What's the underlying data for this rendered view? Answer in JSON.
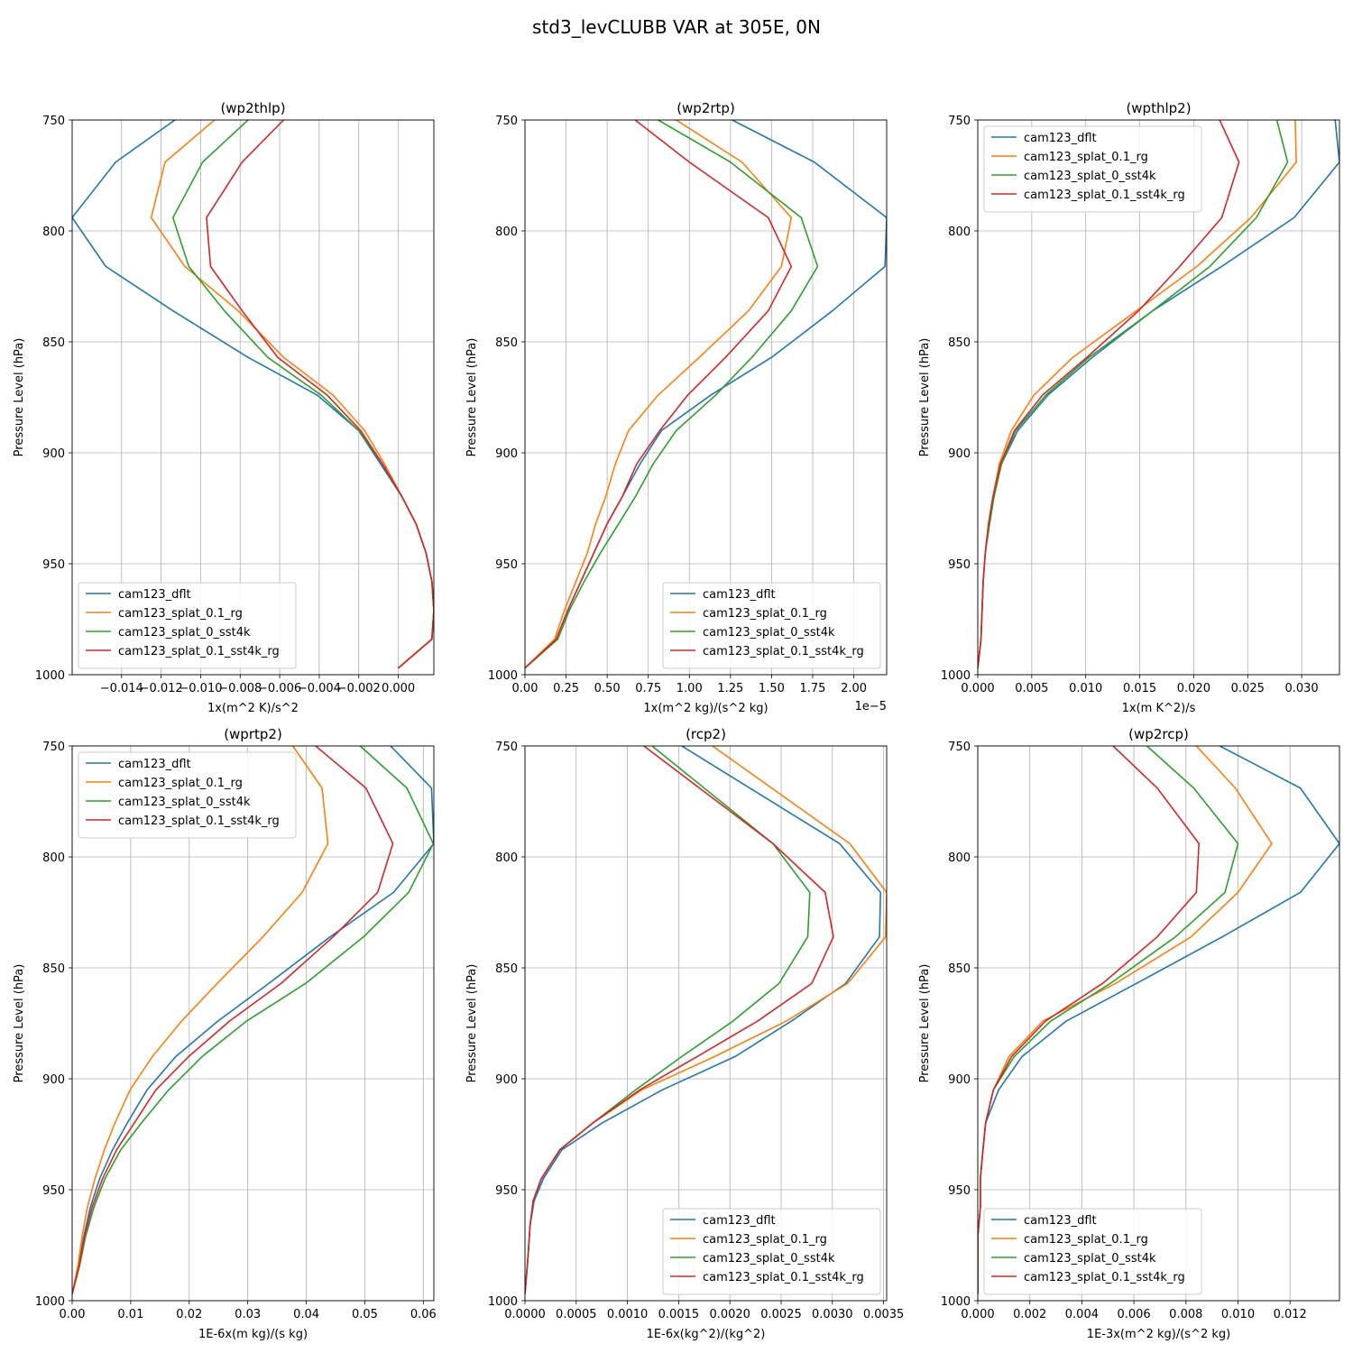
{
  "title": "std3_levCLUBB VAR at 305E, 0N",
  "colors": {
    "series": [
      "#1f77b4",
      "#ff7f0e",
      "#2ca02c",
      "#d62728"
    ],
    "grid": "#b0b0b0",
    "axis": "#000000"
  },
  "chart_data": [
    {
      "type": "line",
      "title": "(wp2thlp)",
      "xlabel": "1x(m^2 K)/s^2",
      "ylabel": "Pressure Level (hPa)",
      "offset_label": "",
      "xlim": [
        -0.0165,
        0.0018
      ],
      "ylim": [
        1000,
        750
      ],
      "xticks": [
        -0.014,
        -0.012,
        -0.01,
        -0.008,
        -0.006,
        -0.004,
        -0.002,
        0.0
      ],
      "xticklabels": [
        "−0.014",
        "−0.012",
        "−0.010",
        "−0.008",
        "−0.006",
        "−0.004",
        "−0.002",
        "0.000"
      ],
      "yticks": [
        750,
        800,
        850,
        900,
        950,
        1000
      ],
      "legend": "lower-left",
      "levels": [
        750,
        769,
        794,
        816,
        836,
        857,
        874,
        890,
        905,
        920,
        932,
        945,
        958,
        971,
        984,
        997
      ],
      "series": [
        {
          "name": "cam123_dflt",
          "values": [
            -0.0113,
            -0.0143,
            -0.0165,
            -0.0148,
            -0.0114,
            -0.0076,
            -0.0041,
            -0.002,
            -0.0009,
            0.0002,
            0.0009,
            0.0014,
            0.0017,
            0.0018,
            0.0017,
            0.0
          ]
        },
        {
          "name": "cam123_splat_0.1_rg",
          "values": [
            -0.0093,
            -0.0118,
            -0.0125,
            -0.0108,
            -0.0081,
            -0.0058,
            -0.0033,
            -0.0017,
            -0.0007,
            0.0002,
            0.0009,
            0.0014,
            0.0017,
            0.0018,
            0.0017,
            0.0
          ]
        },
        {
          "name": "cam123_splat_0_sst4k",
          "values": [
            -0.0076,
            -0.0099,
            -0.0114,
            -0.0106,
            -0.0088,
            -0.0066,
            -0.0039,
            -0.002,
            -0.0008,
            0.0002,
            0.0009,
            0.0014,
            0.0017,
            0.0018,
            0.0017,
            0.0
          ]
        },
        {
          "name": "cam123_splat_0.1_sst4k_rg",
          "values": [
            -0.0058,
            -0.0079,
            -0.0097,
            -0.0095,
            -0.0079,
            -0.0061,
            -0.0036,
            -0.0019,
            -0.0008,
            0.0002,
            0.0009,
            0.0014,
            0.0017,
            0.0018,
            0.0017,
            0.0
          ]
        }
      ]
    },
    {
      "type": "line",
      "title": "(wp2rtp)",
      "xlabel": "1x(m^2 kg)/(s^2 kg)",
      "ylabel": "Pressure Level (hPa)",
      "offset_label": "1e−5",
      "xlim": [
        0,
        2.2
      ],
      "ylim": [
        1000,
        750
      ],
      "xticks": [
        0.0,
        0.25,
        0.5,
        0.75,
        1.0,
        1.25,
        1.5,
        1.75,
        2.0
      ],
      "xticklabels": [
        "0.00",
        "0.25",
        "0.50",
        "0.75",
        "1.00",
        "1.25",
        "1.50",
        "1.75",
        "2.00"
      ],
      "yticks": [
        750,
        800,
        850,
        900,
        950,
        1000
      ],
      "legend": "lower-right",
      "levels": [
        750,
        769,
        794,
        816,
        836,
        857,
        874,
        890,
        905,
        920,
        932,
        945,
        958,
        971,
        984,
        997
      ],
      "series": [
        {
          "name": "cam123_dflt",
          "values": [
            1.26,
            1.76,
            2.2,
            2.19,
            1.87,
            1.5,
            1.13,
            0.83,
            0.7,
            0.59,
            0.5,
            0.42,
            0.34,
            0.26,
            0.19,
            0.0
          ]
        },
        {
          "name": "cam123_splat_0.1_rg",
          "values": [
            0.92,
            1.32,
            1.62,
            1.56,
            1.36,
            1.06,
            0.81,
            0.63,
            0.55,
            0.49,
            0.43,
            0.38,
            0.31,
            0.24,
            0.18,
            0.0
          ]
        },
        {
          "name": "cam123_splat_0_sst4k",
          "values": [
            0.81,
            1.25,
            1.68,
            1.78,
            1.62,
            1.38,
            1.16,
            0.92,
            0.78,
            0.67,
            0.57,
            0.46,
            0.36,
            0.27,
            0.2,
            0.0
          ]
        },
        {
          "name": "cam123_splat_0.1_sst4k_rg",
          "values": [
            0.67,
            1.0,
            1.48,
            1.62,
            1.48,
            1.22,
            0.99,
            0.82,
            0.68,
            0.59,
            0.5,
            0.42,
            0.34,
            0.26,
            0.19,
            0.0
          ]
        }
      ]
    },
    {
      "type": "line",
      "title": "(wpthlp2)",
      "xlabel": "1x(m K^2)/s",
      "ylabel": "Pressure Level (hPa)",
      "offset_label": "",
      "xlim": [
        0,
        0.0335
      ],
      "ylim": [
        1000,
        750
      ],
      "xticks": [
        0.0,
        0.005,
        0.01,
        0.015,
        0.02,
        0.025,
        0.03
      ],
      "xticklabels": [
        "0.000",
        "0.005",
        "0.010",
        "0.015",
        "0.020",
        "0.025",
        "0.030"
      ],
      "yticks": [
        750,
        800,
        850,
        900,
        950,
        1000
      ],
      "legend": "upper-left",
      "levels": [
        750,
        769,
        794,
        816,
        836,
        857,
        874,
        890,
        905,
        920,
        932,
        945,
        958,
        971,
        984,
        997
      ],
      "series": [
        {
          "name": "cam123_dflt",
          "values": [
            0.0331,
            0.0335,
            0.0293,
            0.0226,
            0.0162,
            0.0106,
            0.0065,
            0.0037,
            0.0022,
            0.0014,
            0.001,
            0.0007,
            0.0005,
            0.0004,
            0.0003,
            0.0
          ]
        },
        {
          "name": "cam123_splat_0.1_rg",
          "values": [
            0.0294,
            0.0295,
            0.0253,
            0.0203,
            0.0147,
            0.0088,
            0.0052,
            0.0031,
            0.002,
            0.0014,
            0.001,
            0.0007,
            0.0005,
            0.0004,
            0.0003,
            0.0
          ]
        },
        {
          "name": "cam123_splat_0_sst4k",
          "values": [
            0.0277,
            0.0287,
            0.0258,
            0.0215,
            0.0162,
            0.0103,
            0.0063,
            0.0035,
            0.0022,
            0.0015,
            0.0011,
            0.0007,
            0.0005,
            0.0004,
            0.0003,
            0.0
          ]
        },
        {
          "name": "cam123_splat_0.1_sst4k_rg",
          "values": [
            0.0224,
            0.0242,
            0.0226,
            0.0187,
            0.0149,
            0.0101,
            0.006,
            0.0034,
            0.0021,
            0.0014,
            0.001,
            0.0007,
            0.0005,
            0.0004,
            0.0003,
            0.0
          ]
        }
      ]
    },
    {
      "type": "line",
      "title": "(wprtp2)",
      "xlabel": "1E-6x(m kg)/(s kg)",
      "ylabel": "Pressure Level (hPa)",
      "offset_label": "",
      "xlim": [
        0,
        0.0618
      ],
      "ylim": [
        1000,
        750
      ],
      "xticks": [
        0.0,
        0.01,
        0.02,
        0.03,
        0.04,
        0.05,
        0.06
      ],
      "xticklabels": [
        "0.00",
        "0.01",
        "0.02",
        "0.03",
        "0.04",
        "0.05",
        "0.06"
      ],
      "yticks": [
        750,
        800,
        850,
        900,
        950,
        1000
      ],
      "legend": "upper-left",
      "levels": [
        750,
        769,
        794,
        816,
        836,
        857,
        874,
        890,
        905,
        920,
        932,
        945,
        958,
        971,
        984,
        997
      ],
      "series": [
        {
          "name": "cam123_dflt",
          "values": [
            0.0544,
            0.0614,
            0.0618,
            0.0549,
            0.0441,
            0.0336,
            0.0249,
            0.0177,
            0.0128,
            0.0094,
            0.0069,
            0.0047,
            0.0031,
            0.002,
            0.0011,
            0.0
          ]
        },
        {
          "name": "cam123_splat_0.1_rg",
          "values": [
            0.0377,
            0.0427,
            0.0437,
            0.0393,
            0.0326,
            0.0248,
            0.0187,
            0.0137,
            0.0099,
            0.0073,
            0.0055,
            0.0039,
            0.0026,
            0.0017,
            0.001,
            0.0
          ]
        },
        {
          "name": "cam123_splat_0_sst4k",
          "values": [
            0.0492,
            0.0572,
            0.0617,
            0.0575,
            0.0498,
            0.0399,
            0.0298,
            0.0222,
            0.0165,
            0.0118,
            0.0083,
            0.0056,
            0.0037,
            0.0023,
            0.0013,
            0.0
          ]
        },
        {
          "name": "cam123_splat_0.1_sst4k_rg",
          "values": [
            0.0416,
            0.0502,
            0.0548,
            0.0522,
            0.0446,
            0.0357,
            0.0269,
            0.0199,
            0.0143,
            0.0106,
            0.0076,
            0.0052,
            0.0034,
            0.0021,
            0.0012,
            0.0
          ]
        }
      ]
    },
    {
      "type": "line",
      "title": "(rcp2)",
      "xlabel": "1E-6x(kg^2)/(kg^2)",
      "ylabel": "Pressure Level (hPa)",
      "offset_label": "",
      "xlim": [
        0,
        0.00353
      ],
      "ylim": [
        1000,
        750
      ],
      "xticks": [
        0.0,
        0.0005,
        0.001,
        0.0015,
        0.002,
        0.0025,
        0.003,
        0.0035
      ],
      "xticklabels": [
        "0.0000",
        "0.0005",
        "0.0010",
        "0.0015",
        "0.0020",
        "0.0025",
        "0.0030",
        "0.0035"
      ],
      "yticks": [
        750,
        800,
        850,
        900,
        950,
        1000
      ],
      "legend": "lower-right",
      "levels": [
        750,
        794,
        816,
        836,
        857,
        874,
        890,
        905,
        920,
        932,
        945,
        955,
        966,
        980,
        997
      ],
      "series": [
        {
          "name": "cam123_dflt",
          "values": [
            0.00153,
            0.00307,
            0.00347,
            0.00346,
            0.00313,
            0.0026,
            0.00205,
            0.00134,
            0.00075,
            0.00036,
            0.00018,
            9e-05,
            5e-05,
            3e-05,
            0.0
          ]
        },
        {
          "name": "cam123_splat_0.1_rg",
          "values": [
            0.00183,
            0.00317,
            0.00353,
            0.00352,
            0.00315,
            0.00255,
            0.00185,
            0.00114,
            0.00066,
            0.00034,
            0.00016,
            8e-05,
            5e-05,
            3e-05,
            0.0
          ]
        },
        {
          "name": "cam123_splat_0_sst4k",
          "values": [
            0.00124,
            0.00242,
            0.00278,
            0.00276,
            0.00248,
            0.00203,
            0.00153,
            0.00108,
            0.00066,
            0.00034,
            0.00016,
            8e-05,
            5e-05,
            3e-05,
            0.0
          ]
        },
        {
          "name": "cam123_splat_0.1_sst4k_rg",
          "values": [
            0.00116,
            0.00242,
            0.00293,
            0.00301,
            0.0028,
            0.00227,
            0.00168,
            0.00112,
            0.00066,
            0.00034,
            0.00016,
            8e-05,
            5e-05,
            3e-05,
            0.0
          ]
        }
      ]
    },
    {
      "type": "line",
      "title": "(wp2rcp)",
      "xlabel": "1E-3x(m^2 kg)/(s^2 kg)",
      "ylabel": "Pressure Level (hPa)",
      "offset_label": "",
      "xlim": [
        0,
        0.0139
      ],
      "ylim": [
        1000,
        750
      ],
      "xticks": [
        0.0,
        0.002,
        0.004,
        0.006,
        0.008,
        0.01,
        0.012
      ],
      "xticklabels": [
        "0.000",
        "0.002",
        "0.004",
        "0.006",
        "0.008",
        "0.010",
        "0.012"
      ],
      "yticks": [
        750,
        800,
        850,
        900,
        950,
        1000
      ],
      "legend": "lower-left",
      "levels": [
        750,
        769,
        794,
        816,
        836,
        857,
        874,
        890,
        905,
        920,
        932,
        945,
        958,
        971,
        984,
        997
      ],
      "series": [
        {
          "name": "cam123_dflt",
          "values": [
            0.0093,
            0.0124,
            0.0139,
            0.0124,
            0.0094,
            0.0061,
            0.0034,
            0.0017,
            0.0008,
            0.0003,
            0.0002,
            0.0001,
            0.0001,
            0.0,
            0.0,
            0.0
          ]
        },
        {
          "name": "cam123_splat_0.1_rg",
          "values": [
            0.0084,
            0.0099,
            0.0113,
            0.01,
            0.0082,
            0.0053,
            0.0025,
            0.0012,
            0.0006,
            0.0003,
            0.0002,
            0.0001,
            0.0001,
            0.0,
            0.0,
            0.0
          ]
        },
        {
          "name": "cam123_splat_0_sst4k",
          "values": [
            0.0065,
            0.0083,
            0.01,
            0.0095,
            0.0076,
            0.0051,
            0.0028,
            0.0014,
            0.0006,
            0.0003,
            0.0002,
            0.0001,
            0.0001,
            0.0,
            0.0,
            0.0
          ]
        },
        {
          "name": "cam123_splat_0.1_sst4k_rg",
          "values": [
            0.0052,
            0.0069,
            0.0085,
            0.0084,
            0.0069,
            0.0048,
            0.0026,
            0.0013,
            0.0006,
            0.0003,
            0.0002,
            0.0001,
            0.0001,
            0.0,
            0.0,
            0.0
          ]
        }
      ]
    }
  ]
}
